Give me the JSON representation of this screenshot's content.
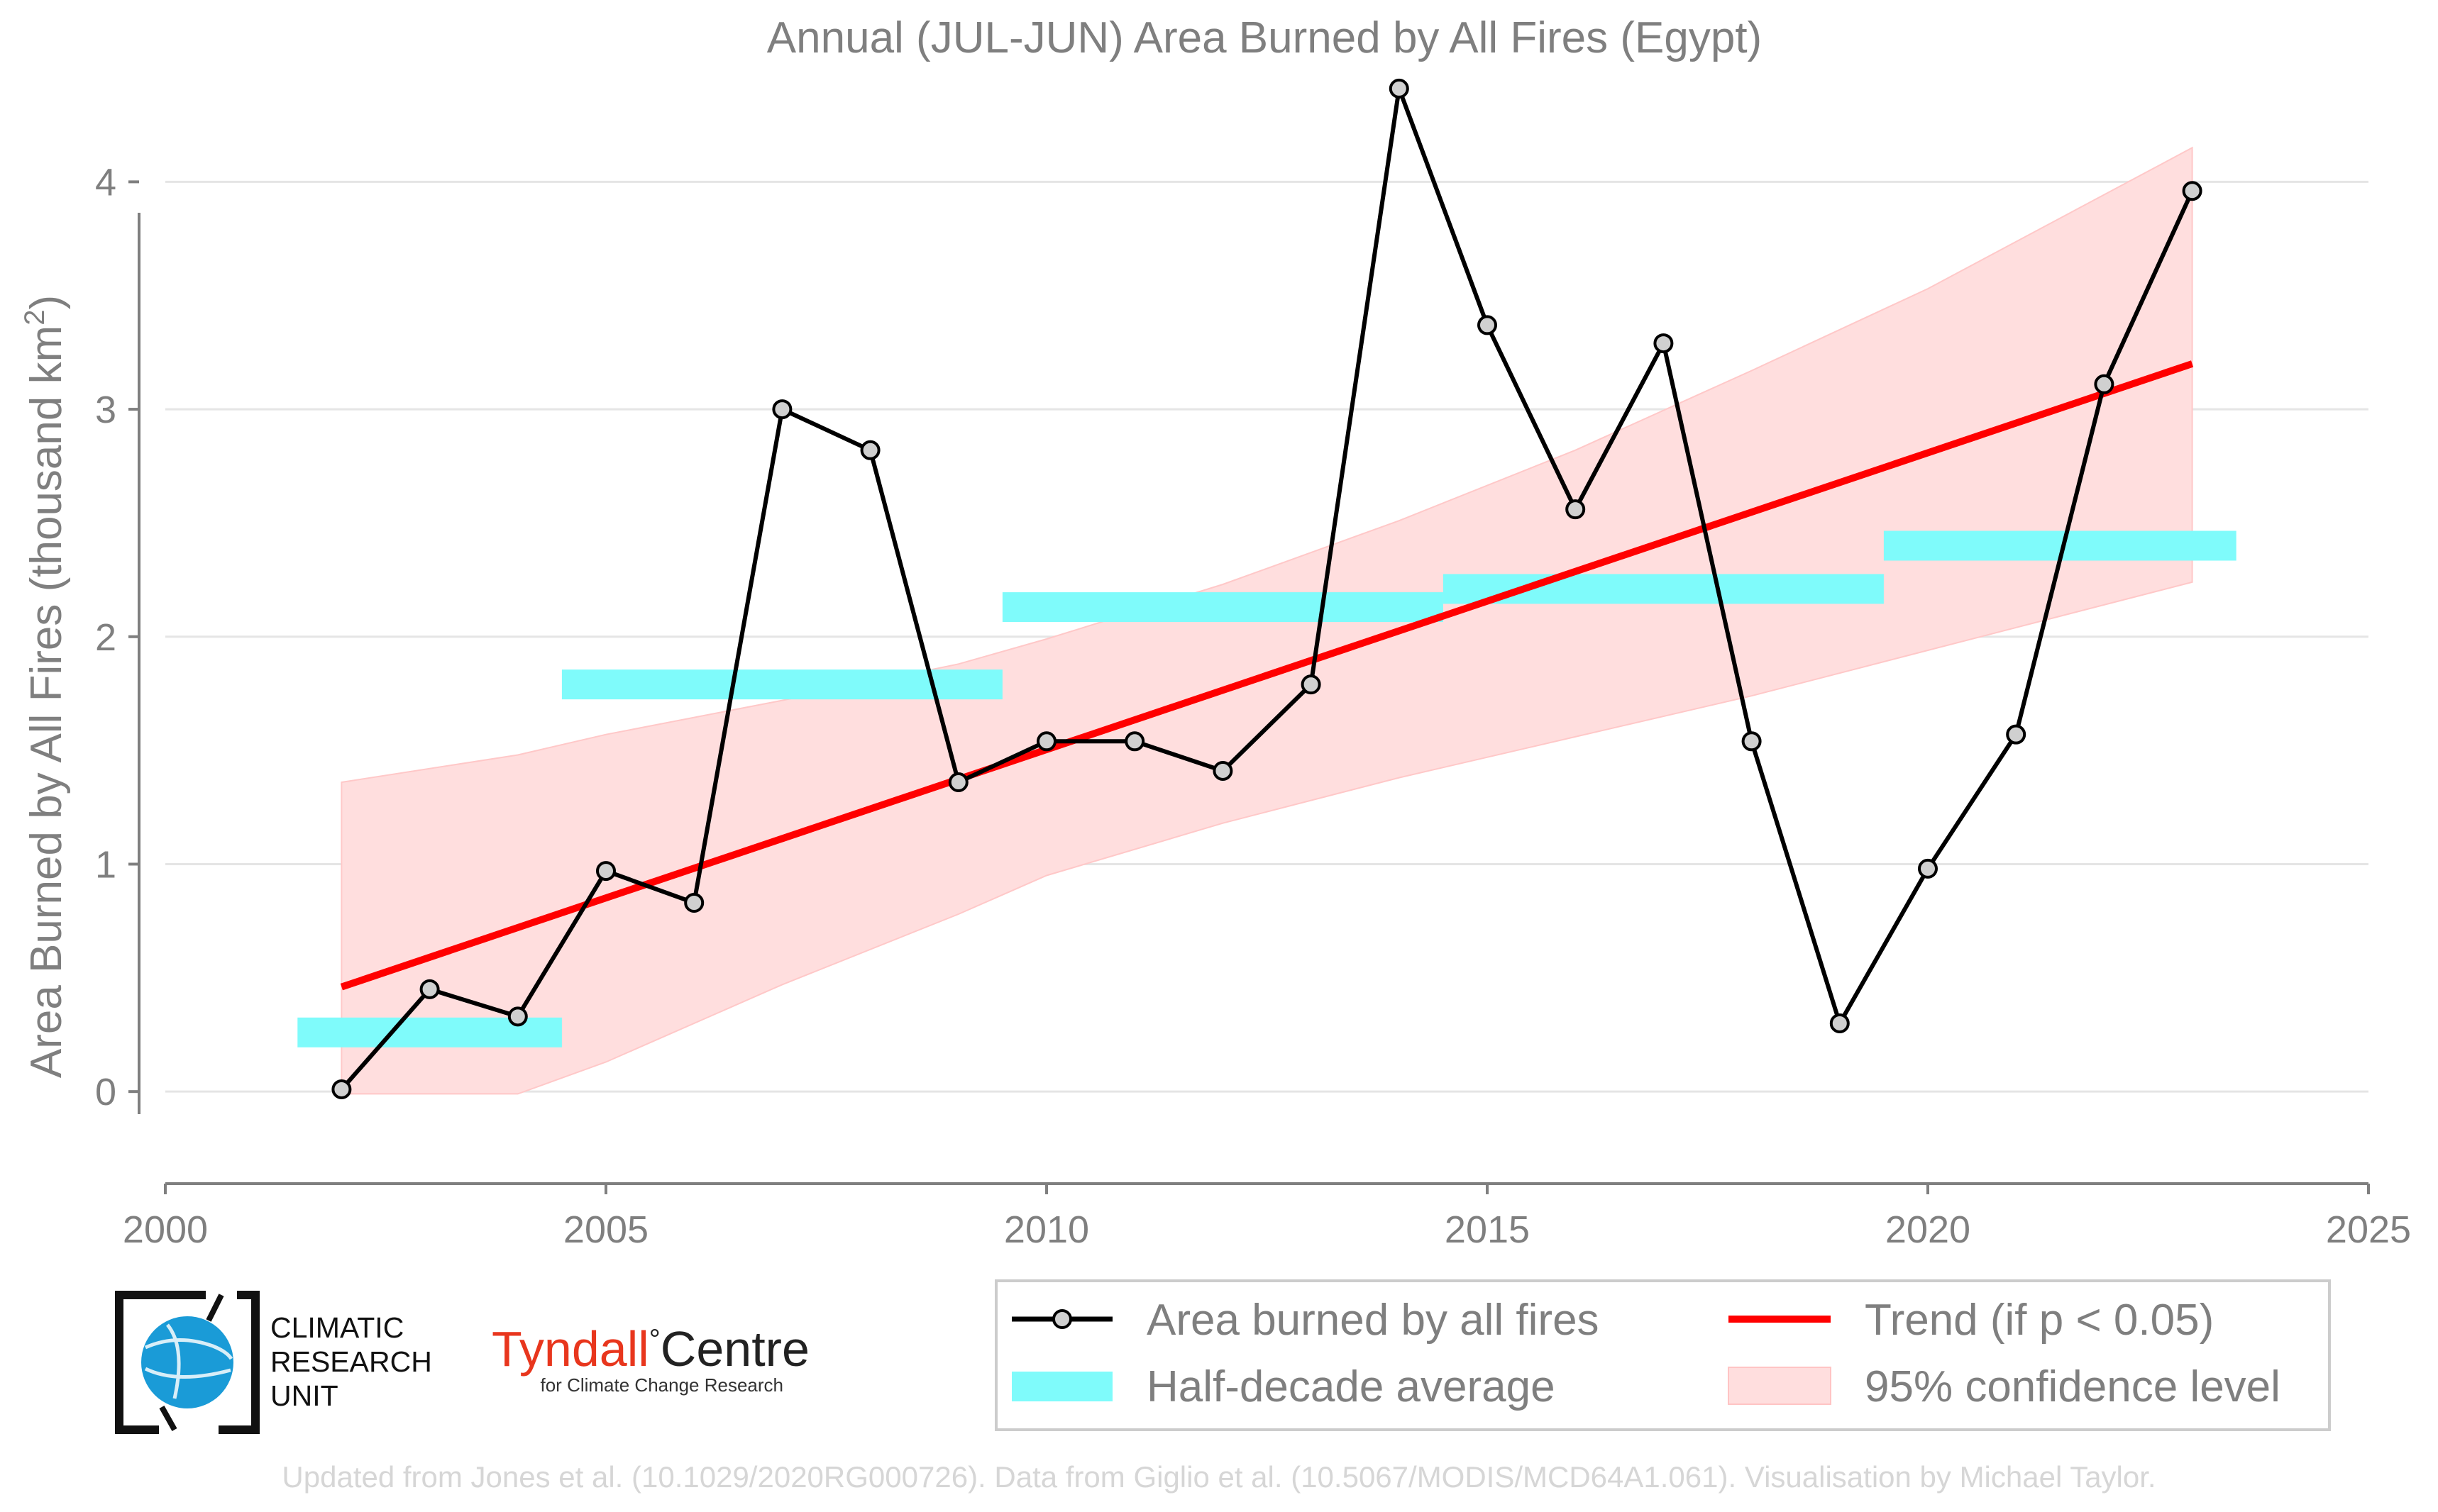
{
  "chart_data": {
    "type": "line",
    "title": "Annual (JUL-JUN) Area Burned by All Fires (Egypt)",
    "ylabel_main": "Area Burned by All Fires (thousand km",
    "ylabel_sup": "2",
    "ylabel_close": ")",
    "xlabel": "",
    "xlim": [
      2000,
      2025
    ],
    "ylim": [
      -0.33,
      4.55
    ],
    "xticks": [
      2000,
      2005,
      2010,
      2015,
      2020,
      2025
    ],
    "yticks": [
      0,
      1,
      2,
      3,
      4
    ],
    "grid": "horizontal",
    "series": [
      {
        "name": "Area burned by all fires",
        "color": "#000000",
        "x": [
          2002,
          2003,
          2004,
          2005,
          2006,
          2007,
          2008,
          2009,
          2010,
          2011,
          2012,
          2013,
          2014,
          2015,
          2016,
          2017,
          2018,
          2019,
          2020,
          2021,
          2022,
          2023
        ],
        "values": [
          0.01,
          0.45,
          0.33,
          0.97,
          0.83,
          3.0,
          2.82,
          1.36,
          1.54,
          1.54,
          1.41,
          1.79,
          4.41,
          3.37,
          2.56,
          3.29,
          1.54,
          0.3,
          0.98,
          1.57,
          3.11,
          3.96
        ]
      }
    ],
    "half_decade_average": {
      "name": "Half-decade average",
      "color": "#7ffbfb",
      "segments": [
        {
          "x0": 2001.5,
          "x1": 2004.5,
          "value": 0.26
        },
        {
          "x0": 2004.5,
          "x1": 2009.5,
          "value": 1.79
        },
        {
          "x0": 2009.5,
          "x1": 2014.5,
          "value": 2.13
        },
        {
          "x0": 2014.5,
          "x1": 2019.5,
          "value": 2.21
        },
        {
          "x0": 2019.5,
          "x1": 2023.5,
          "value": 2.4
        }
      ]
    },
    "trend": {
      "name": "Trend (if p < 0.05)",
      "color": "#ff0000",
      "x": [
        2002,
        2023
      ],
      "values": [
        0.46,
        3.2
      ]
    },
    "confidence": {
      "name": "95% confidence level",
      "color": "#ffdede",
      "x": [
        2002,
        2004,
        2005,
        2007,
        2009,
        2010,
        2012,
        2014,
        2016,
        2018,
        2020,
        2023
      ],
      "upper": [
        1.36,
        1.48,
        1.57,
        1.72,
        1.88,
        1.99,
        2.23,
        2.51,
        2.82,
        3.17,
        3.53,
        4.15
      ],
      "lower": [
        -0.01,
        -0.01,
        0.13,
        0.47,
        0.78,
        0.95,
        1.18,
        1.38,
        1.56,
        1.74,
        1.94,
        2.24
      ]
    },
    "legend_position": "bottom-right"
  },
  "legend": {
    "items": [
      {
        "label": "Area burned by all fires",
        "kind": "line-marker",
        "color": "#000000"
      },
      {
        "label": "Trend (if p < 0.05)",
        "kind": "line",
        "color": "#ff0000"
      },
      {
        "label": "Half-decade average",
        "kind": "band",
        "color": "#7ffbfb"
      },
      {
        "label": "95% confidence level",
        "kind": "patch",
        "color": "#ffdede"
      }
    ]
  },
  "logos": {
    "cru_lines": [
      "CLIMATIC",
      "RESEARCH",
      "UNIT"
    ],
    "tyndall_brand": "Tyndall",
    "tyndall_degree": "°",
    "tyndall_centre": "Centre",
    "tyndall_sub": "for Climate Change Research"
  },
  "footer": "Updated from Jones et al. (10.1029/2020RG000726). Data from Giglio et al. (10.5067/MODIS/MCD64A1.061). Visualisation by Michael Taylor."
}
